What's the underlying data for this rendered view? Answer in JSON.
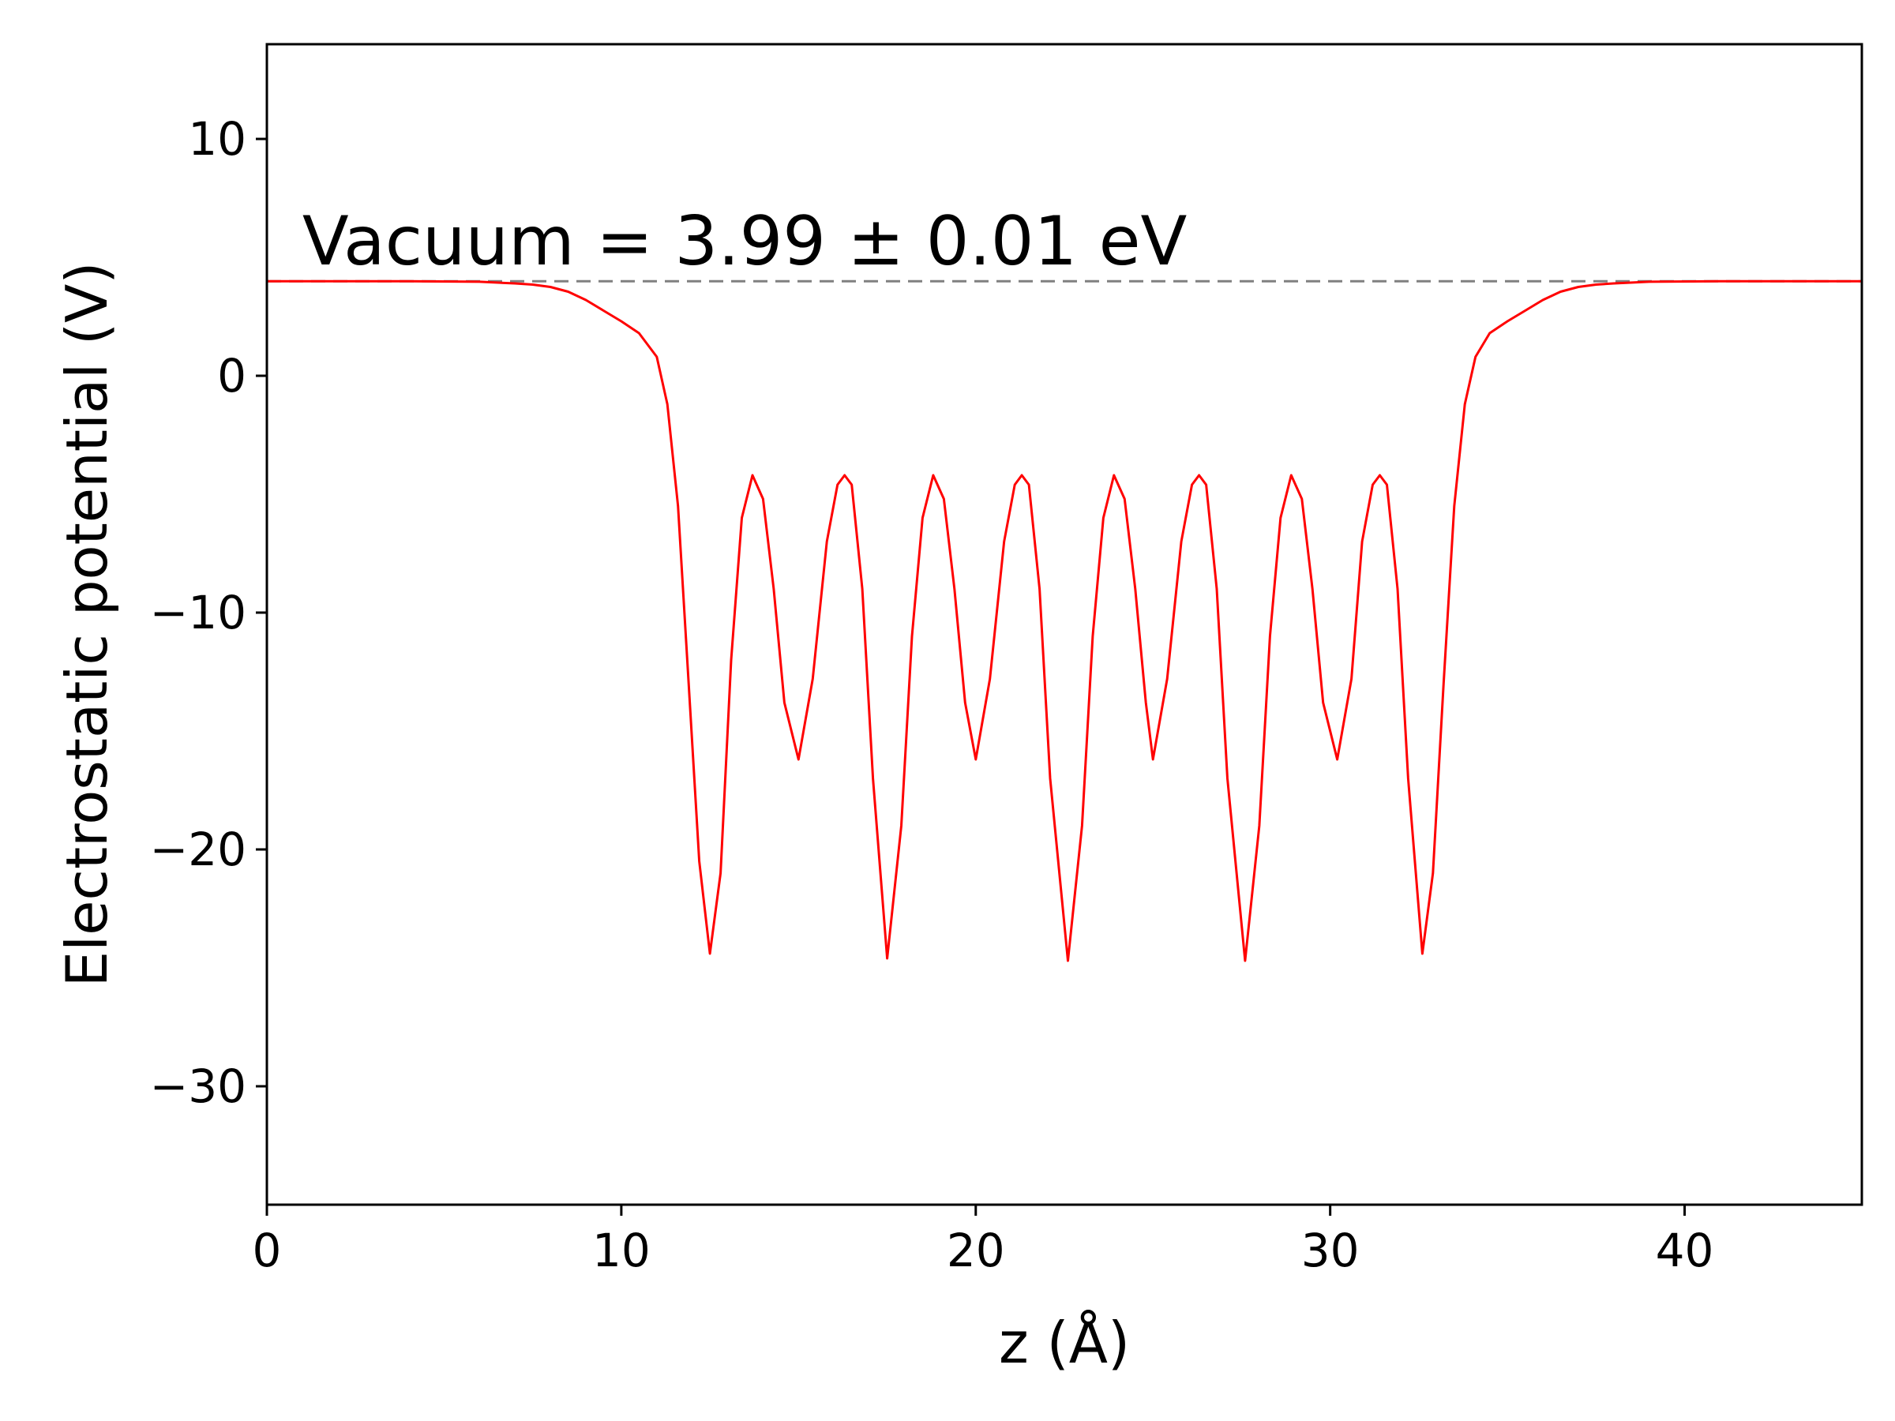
{
  "chart_data": {
    "type": "line",
    "title": "",
    "xlabel": "z (Å)",
    "ylabel": "Electrostatic potential (V)",
    "xlim": [
      0,
      45
    ],
    "ylim": [
      -35,
      14
    ],
    "xticks": [
      0,
      10,
      20,
      30,
      40
    ],
    "yticks": [
      10,
      0,
      -10,
      -20,
      -30
    ],
    "xtick_labels": [
      "0",
      "10",
      "20",
      "30",
      "40"
    ],
    "ytick_labels": [
      "10",
      "0",
      "−10",
      "−20",
      "−30"
    ],
    "grid": false,
    "colors": {
      "series": "#ff0000",
      "reference": "#808080"
    },
    "annotation": {
      "text": "Vacuum = 3.99 ± 0.01 eV",
      "x": 1,
      "y": 4.7
    },
    "reference_line": {
      "y": 3.99,
      "style": "dashed"
    },
    "series": [
      {
        "points": [
          [
            0,
            3.99
          ],
          [
            2,
            3.99
          ],
          [
            4,
            3.99
          ],
          [
            6,
            3.97
          ],
          [
            7,
            3.9
          ],
          [
            7.5,
            3.85
          ],
          [
            8,
            3.75
          ],
          [
            8.5,
            3.55
          ],
          [
            9,
            3.2
          ],
          [
            9.5,
            2.75
          ],
          [
            10,
            2.3
          ],
          [
            10.5,
            1.8
          ],
          [
            11,
            0.8
          ],
          [
            11.3,
            -1.2
          ],
          [
            11.6,
            -5.5
          ],
          [
            11.9,
            -13
          ],
          [
            12.2,
            -20.5
          ],
          [
            12.5,
            -24.4
          ],
          [
            12.8,
            -21
          ],
          [
            13.1,
            -12
          ],
          [
            13.4,
            -6
          ],
          [
            13.7,
            -4.2
          ],
          [
            14.0,
            -5.2
          ],
          [
            14.3,
            -9
          ],
          [
            14.6,
            -13.8
          ],
          [
            15.0,
            -16.2
          ],
          [
            15.4,
            -12.8
          ],
          [
            15.8,
            -7
          ],
          [
            16.1,
            -4.6
          ],
          [
            16.3,
            -4.2
          ],
          [
            16.5,
            -4.6
          ],
          [
            16.8,
            -9
          ],
          [
            17.1,
            -17
          ],
          [
            17.5,
            -24.6
          ],
          [
            17.9,
            -19
          ],
          [
            18.2,
            -11
          ],
          [
            18.5,
            -6
          ],
          [
            18.8,
            -4.2
          ],
          [
            19.1,
            -5.2
          ],
          [
            19.4,
            -9
          ],
          [
            19.7,
            -13.8
          ],
          [
            20.0,
            -16.2
          ],
          [
            20.4,
            -12.8
          ],
          [
            20.8,
            -7
          ],
          [
            21.1,
            -4.6
          ],
          [
            21.3,
            -4.2
          ],
          [
            21.5,
            -4.6
          ],
          [
            21.8,
            -9
          ],
          [
            22.1,
            -17
          ],
          [
            22.6,
            -24.7
          ],
          [
            23.0,
            -19
          ],
          [
            23.3,
            -11
          ],
          [
            23.6,
            -6
          ],
          [
            23.9,
            -4.2
          ],
          [
            24.2,
            -5.2
          ],
          [
            24.5,
            -9
          ],
          [
            24.8,
            -13.8
          ],
          [
            25.0,
            -16.2
          ],
          [
            25.4,
            -12.8
          ],
          [
            25.8,
            -7
          ],
          [
            26.1,
            -4.6
          ],
          [
            26.3,
            -4.2
          ],
          [
            26.5,
            -4.6
          ],
          [
            26.8,
            -9
          ],
          [
            27.1,
            -17
          ],
          [
            27.6,
            -24.7
          ],
          [
            28.0,
            -19
          ],
          [
            28.3,
            -11
          ],
          [
            28.6,
            -6
          ],
          [
            28.9,
            -4.2
          ],
          [
            29.2,
            -5.2
          ],
          [
            29.5,
            -9
          ],
          [
            29.8,
            -13.8
          ],
          [
            30.2,
            -16.2
          ],
          [
            30.6,
            -12.8
          ],
          [
            30.9,
            -7
          ],
          [
            31.2,
            -4.6
          ],
          [
            31.4,
            -4.2
          ],
          [
            31.6,
            -4.6
          ],
          [
            31.9,
            -9
          ],
          [
            32.2,
            -17
          ],
          [
            32.6,
            -24.4
          ],
          [
            32.9,
            -21
          ],
          [
            33.2,
            -13
          ],
          [
            33.5,
            -5.5
          ],
          [
            33.8,
            -1.2
          ],
          [
            34.1,
            0.8
          ],
          [
            34.5,
            1.8
          ],
          [
            35,
            2.3
          ],
          [
            35.5,
            2.75
          ],
          [
            36,
            3.2
          ],
          [
            36.5,
            3.55
          ],
          [
            37,
            3.75
          ],
          [
            37.5,
            3.85
          ],
          [
            38,
            3.9
          ],
          [
            39,
            3.97
          ],
          [
            41,
            3.99
          ],
          [
            43,
            3.99
          ],
          [
            45,
            3.99
          ]
        ]
      }
    ]
  }
}
